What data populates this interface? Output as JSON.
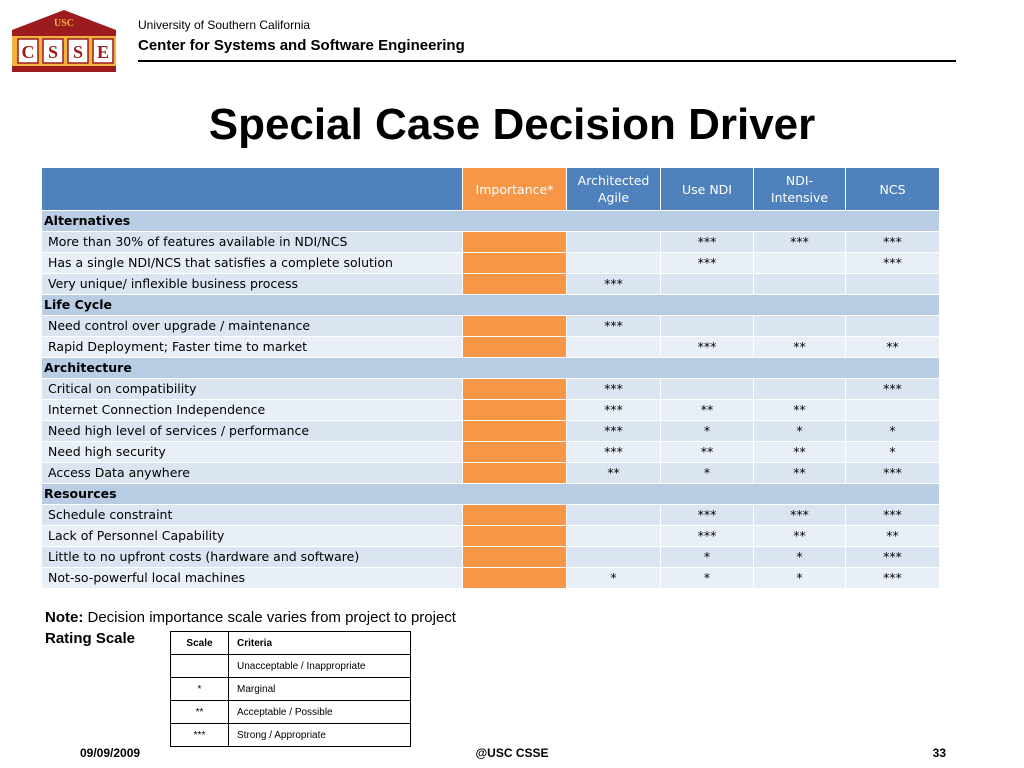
{
  "header": {
    "logo_top_text": "USC",
    "logo_letters": [
      "C",
      "S",
      "S",
      "E"
    ],
    "university": "University of Southern California",
    "center": "Center for Systems and Software Engineering"
  },
  "title": "Special Case Decision Driver",
  "table": {
    "columns": [
      "",
      "Importance*",
      "Architected Agile",
      "Use NDI",
      "NDI-Intensive",
      "NCS"
    ],
    "sections": [
      {
        "name": "Alternatives",
        "rows": [
          {
            "label": "More than 30% of features available in NDI/NCS",
            "cells": [
              "",
              "***",
              "***",
              "***"
            ]
          },
          {
            "label": "Has a single NDI/NCS that satisfies a complete solution",
            "cells": [
              "",
              "***",
              "",
              "***"
            ]
          },
          {
            "label": "Very unique/ inflexible business process",
            "cells": [
              "***",
              "",
              "",
              ""
            ]
          }
        ]
      },
      {
        "name": "Life Cycle",
        "rows": [
          {
            "label": "Need control over upgrade / maintenance",
            "cells": [
              "***",
              "",
              "",
              ""
            ]
          },
          {
            "label": "Rapid Deployment; Faster time to market",
            "cells": [
              "",
              "***",
              "**",
              "**"
            ]
          }
        ]
      },
      {
        "name": "Architecture",
        "rows": [
          {
            "label": "Critical on compatibility",
            "cells": [
              "***",
              "",
              "",
              "***"
            ]
          },
          {
            "label": "Internet Connection Independence",
            "cells": [
              "***",
              "**",
              "**",
              ""
            ]
          },
          {
            "label": "Need high level of services / performance",
            "cells": [
              "***",
              "*",
              "*",
              "*"
            ]
          },
          {
            "label": "Need high security",
            "cells": [
              "***",
              "**",
              "**",
              "*"
            ]
          },
          {
            "label": "Access Data anywhere",
            "cells": [
              "**",
              "*",
              "**",
              "***"
            ]
          }
        ]
      },
      {
        "name": "Resources",
        "rows": [
          {
            "label": "Schedule constraint",
            "cells": [
              "",
              "***",
              "***",
              "***"
            ]
          },
          {
            "label": "Lack of Personnel Capability",
            "cells": [
              "",
              "***",
              "**",
              "**"
            ]
          },
          {
            "label": "Little to no upfront costs (hardware and software)",
            "cells": [
              "",
              "*",
              "*",
              "***"
            ]
          },
          {
            "label": "Not-so-powerful local machines",
            "cells": [
              "*",
              "*",
              "*",
              "***"
            ]
          }
        ]
      }
    ]
  },
  "note": {
    "label": "Note:",
    "text": " Decision importance scale varies from project to project"
  },
  "rating": {
    "title": "Rating Scale",
    "headers": [
      "Scale",
      "Criteria"
    ],
    "rows": [
      {
        "scale": "",
        "criteria": "Unacceptable / Inappropriate"
      },
      {
        "scale": "*",
        "criteria": "Marginal"
      },
      {
        "scale": "**",
        "criteria": "Acceptable / Possible"
      },
      {
        "scale": "***",
        "criteria": "Strong / Appropriate"
      }
    ]
  },
  "footer": {
    "date": "09/09/2009",
    "center": "@USC CSSE",
    "page": "33"
  },
  "colors": {
    "header_blue": "#4f81bd",
    "importance_orange": "#f79646",
    "section_blue": "#b8cce4",
    "row_light": "#dbe5f1",
    "logo_maroon": "#9b1b1e",
    "logo_gold": "#f2b33d"
  }
}
